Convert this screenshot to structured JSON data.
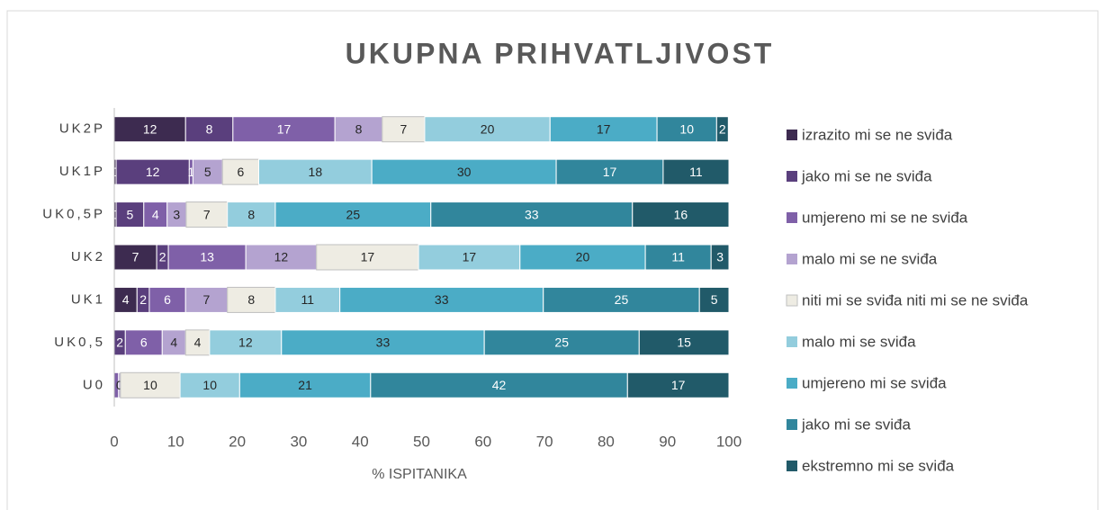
{
  "chart_data": {
    "type": "stacked_barh",
    "title": "UKUPNA PRIHVATLJIVOST",
    "x_label": "% ISPITANIKA",
    "categories": [
      "UK2P",
      "UK1P",
      "UK0,5P",
      "UK2",
      "UK1",
      "UK0,5",
      "U0"
    ],
    "xlim": [
      0,
      100
    ],
    "xticks": [
      0,
      10,
      20,
      30,
      40,
      50,
      60,
      70,
      80,
      90,
      100
    ],
    "grid": false,
    "legend": "right",
    "series": [
      {
        "name": "izrazito mi se ne sviđa",
        "color": "#3d2b50",
        "values": [
          11.6,
          0.3,
          0.3,
          6.9,
          3.7,
          0,
          0
        ],
        "value_labels": [
          "12",
          "0",
          "0",
          "7",
          "4",
          null,
          null
        ]
      },
      {
        "name": "jako mi se ne sviđa",
        "color": "#5a3f7d",
        "values": [
          7.7,
          11.9,
          4.5,
          1.9,
          2.0,
          1.8,
          0
        ],
        "value_labels": [
          "8",
          "12",
          "5",
          "2",
          "2",
          "2",
          null
        ]
      },
      {
        "name": "umjereno mi se ne sviđa",
        "color": "#7f60a8",
        "values": [
          16.6,
          0.6,
          3.8,
          12.6,
          5.9,
          6.0,
          0.7
        ],
        "value_labels": [
          "17",
          "1",
          "4",
          "13",
          "6",
          "6",
          null
        ]
      },
      {
        "name": "malo mi se ne sviđa",
        "color": "#b4a3d0",
        "values": [
          7.7,
          4.8,
          3.1,
          11.5,
          6.8,
          3.8,
          0.3
        ],
        "value_labels": [
          "8",
          "5",
          "3",
          "12",
          "7",
          "4",
          "0"
        ]
      },
      {
        "name": "niti mi se sviđa niti mi se ne sviđa",
        "color": "#eeece3",
        "values": [
          6.9,
          5.9,
          6.7,
          16.6,
          7.8,
          3.9,
          9.7
        ],
        "value_labels": [
          "7",
          "6",
          "7",
          "17",
          "8",
          "4",
          "10"
        ]
      },
      {
        "name": "malo mi se sviđa",
        "color": "#93cddd",
        "values": [
          20.4,
          18.4,
          7.8,
          16.5,
          10.5,
          11.7,
          9.7
        ],
        "value_labels": [
          "20",
          "18",
          "8",
          "17",
          "11",
          "12",
          "10"
        ]
      },
      {
        "name": "umjereno mi se sviđa",
        "color": "#4bacc6",
        "values": [
          17.4,
          30.0,
          25.3,
          20.4,
          33.1,
          33.0,
          21.3
        ],
        "value_labels": [
          "17",
          "30",
          "25",
          "20",
          "33",
          "33",
          "21"
        ]
      },
      {
        "name": "jako mi se sviđa",
        "color": "#31869c",
        "values": [
          9.7,
          17.4,
          32.8,
          10.7,
          25.4,
          25.2,
          41.8
        ],
        "value_labels": [
          "10",
          "17",
          "33",
          "11",
          "25",
          "25",
          "42"
        ]
      },
      {
        "name": "ekstremno mi se sviđa",
        "color": "#215a69",
        "values": [
          1.9,
          10.7,
          15.7,
          2.9,
          4.8,
          14.6,
          16.5
        ],
        "value_labels": [
          "2",
          "11",
          "16",
          "3",
          "5",
          "15",
          "17"
        ]
      }
    ]
  }
}
